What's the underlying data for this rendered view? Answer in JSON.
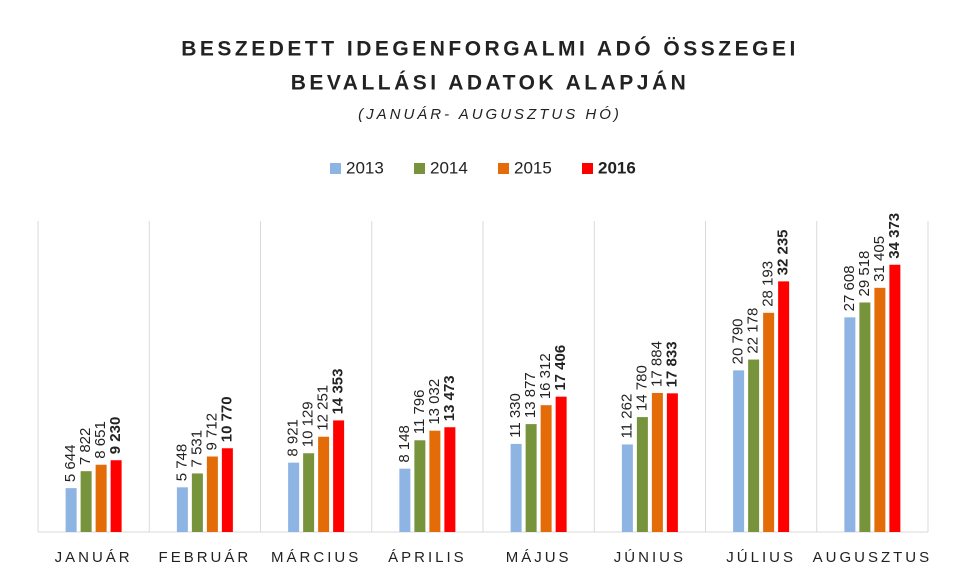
{
  "chart_data": {
    "type": "bar",
    "title": [
      "BESZEDETT IDEGENFORGALMI ADÓ ÖSSZEGEI",
      "BEVALLÁSI ADATOK ALAPJÁN"
    ],
    "subtitle": "(JANUÁR- AUGUSZTUS HÓ)",
    "categories": [
      "JANUÁR",
      "FEBRUÁR",
      "MÁRCIUS",
      "ÁPRILIS",
      "MÁJUS",
      "JÚNIUS",
      "JÚLIUS",
      "AUGUSZTUS"
    ],
    "series": [
      {
        "name": "2013",
        "color": "#8eb4e3",
        "label_color": "#404040",
        "values": [
          5644,
          5748,
          8921,
          8148,
          11330,
          11262,
          20790,
          27608
        ],
        "value_labels": [
          "5 644",
          "5 748",
          "8 921",
          "8 148",
          "11 330",
          "11 262",
          "20 790",
          "27 608"
        ]
      },
      {
        "name": "2014",
        "color": "#77933c",
        "label_color": "#404040",
        "values": [
          7822,
          7531,
          10129,
          11796,
          13877,
          14780,
          22178,
          29518
        ],
        "value_labels": [
          "7 822",
          "7 531",
          "10 129",
          "11 796",
          "13 877",
          "14 780",
          "22 178",
          "29 518"
        ]
      },
      {
        "name": "2015",
        "color": "#e36c09",
        "label_color": "#404040",
        "values": [
          8651,
          9712,
          12251,
          13032,
          16312,
          17884,
          28193,
          31405
        ],
        "value_labels": [
          "8 651",
          "9 712",
          "12 251",
          "13 032",
          "16 312",
          "17 884",
          "28 193",
          "31 405"
        ]
      },
      {
        "name": "2016",
        "color": "#ff0000",
        "label_color": "#ff0000",
        "emphasis": true,
        "values": [
          9230,
          10770,
          14353,
          13473,
          17406,
          17833,
          32235,
          34373
        ],
        "value_labels": [
          "9 230",
          "10 770",
          "14 353",
          "13 473",
          "17 406",
          "17 833",
          "32 235",
          "34 373"
        ]
      }
    ],
    "ylim": [
      0,
      40000
    ]
  }
}
